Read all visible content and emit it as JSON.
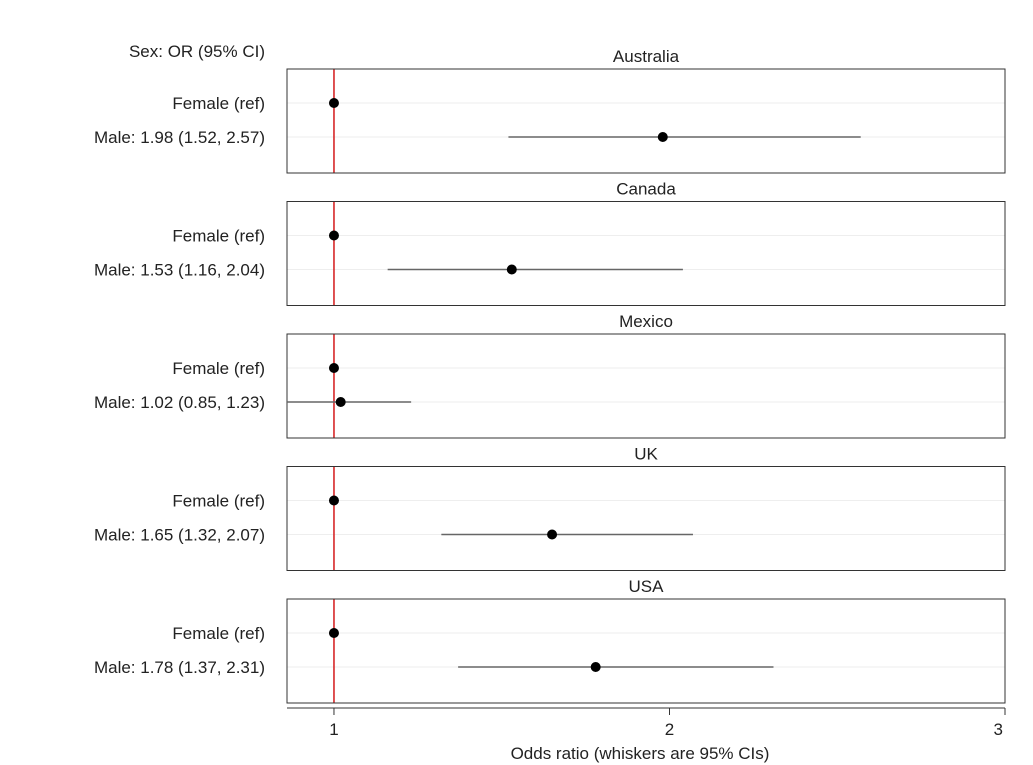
{
  "chart_data": {
    "type": "forest",
    "column_header": "Sex: OR (95% CI)",
    "xlabel": "Odds ratio (whiskers are 95% CIs)",
    "xlim": [
      0.86,
      3.0
    ],
    "xticks": [
      1,
      2,
      3
    ],
    "reference_line": {
      "x": 1,
      "color": "#d62728"
    },
    "panels": [
      {
        "title": "Australia",
        "rows": [
          {
            "label": "Female (ref)",
            "or": 1.0,
            "lo": null,
            "hi": null
          },
          {
            "label": "Male: 1.98 (1.52, 2.57)",
            "or": 1.98,
            "lo": 1.52,
            "hi": 2.57
          }
        ]
      },
      {
        "title": "Canada",
        "rows": [
          {
            "label": "Female (ref)",
            "or": 1.0,
            "lo": null,
            "hi": null
          },
          {
            "label": "Male: 1.53 (1.16, 2.04)",
            "or": 1.53,
            "lo": 1.16,
            "hi": 2.04
          }
        ]
      },
      {
        "title": "Mexico",
        "rows": [
          {
            "label": "Female (ref)",
            "or": 1.0,
            "lo": null,
            "hi": null
          },
          {
            "label": "Male: 1.02 (0.85, 1.23)",
            "or": 1.02,
            "lo": 0.85,
            "hi": 1.23
          }
        ]
      },
      {
        "title": "UK",
        "rows": [
          {
            "label": "Female (ref)",
            "or": 1.0,
            "lo": null,
            "hi": null
          },
          {
            "label": "Male: 1.65 (1.32, 2.07)",
            "or": 1.65,
            "lo": 1.32,
            "hi": 2.07
          }
        ]
      },
      {
        "title": "USA",
        "rows": [
          {
            "label": "Female (ref)",
            "or": 1.0,
            "lo": null,
            "hi": null
          },
          {
            "label": "Male: 1.78 (1.37, 2.31)",
            "or": 1.78,
            "lo": 1.37,
            "hi": 2.31
          }
        ]
      }
    ],
    "colors": {
      "point": "#000000",
      "whisker": "#666666",
      "frame": "#333333",
      "gridline": "#eeeeee"
    }
  }
}
